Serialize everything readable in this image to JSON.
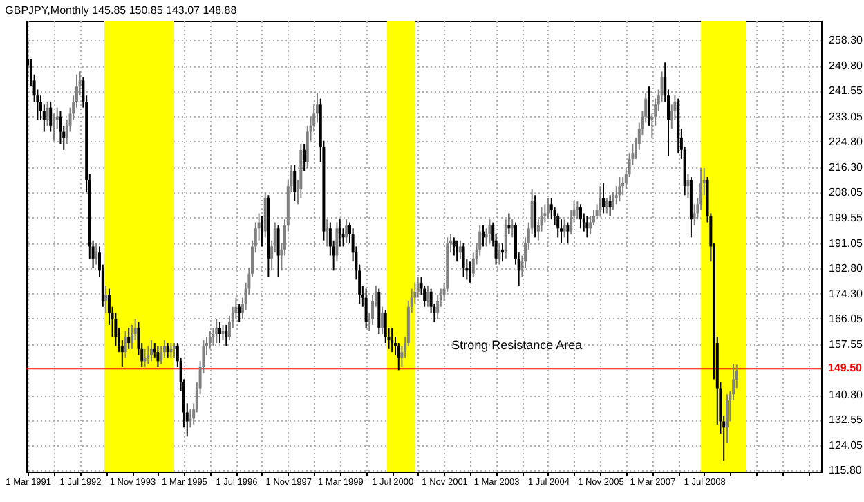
{
  "chart_data": {
    "type": "candlestick",
    "title": "GBPJPY,Monthly 145.85 150.85 143.07 148.88",
    "x": [
      "1991-03",
      "1991-04",
      "1991-05",
      "1991-06",
      "1991-07",
      "1991-08",
      "1991-09",
      "1991-10",
      "1991-11",
      "1991-12",
      "1992-01",
      "1992-02",
      "1992-03",
      "1992-04",
      "1992-05",
      "1992-06",
      "1992-07",
      "1992-08",
      "1992-09",
      "1992-10",
      "1992-11",
      "1992-12",
      "1993-01",
      "1993-02",
      "1993-03",
      "1993-04",
      "1993-05",
      "1993-06",
      "1993-07",
      "1993-08",
      "1993-09",
      "1993-10",
      "1993-11",
      "1993-12",
      "1994-01",
      "1994-02",
      "1994-03",
      "1994-04",
      "1994-05",
      "1994-06",
      "1994-07",
      "1994-08",
      "1994-09",
      "1994-10",
      "1994-11",
      "1994-12",
      "1995-01",
      "1995-02",
      "1995-03",
      "1995-04",
      "1995-05",
      "1995-06",
      "1995-07",
      "1995-08",
      "1995-09",
      "1995-10",
      "1995-11",
      "1995-12",
      "1996-01",
      "1996-02",
      "1996-03",
      "1996-04",
      "1996-05",
      "1996-06",
      "1996-07",
      "1996-08",
      "1996-09",
      "1996-10",
      "1996-11",
      "1996-12",
      "1997-01",
      "1997-02",
      "1997-03",
      "1997-04",
      "1997-05",
      "1997-06",
      "1997-07",
      "1997-08",
      "1997-09",
      "1997-10",
      "1997-11",
      "1997-12",
      "1998-01",
      "1998-02",
      "1998-03",
      "1998-04",
      "1998-05",
      "1998-06",
      "1998-07",
      "1998-08",
      "1998-09",
      "1998-10",
      "1998-11",
      "1998-12",
      "1999-01",
      "1999-02",
      "1999-03",
      "1999-04",
      "1999-05",
      "1999-06",
      "1999-07",
      "1999-08",
      "1999-09",
      "1999-10",
      "1999-11",
      "1999-12",
      "2000-01",
      "2000-02",
      "2000-03",
      "2000-04",
      "2000-05",
      "2000-06",
      "2000-07",
      "2000-08",
      "2000-09",
      "2000-10",
      "2000-11",
      "2000-12",
      "2001-01",
      "2001-02",
      "2001-03",
      "2001-04",
      "2001-05",
      "2001-06",
      "2001-07",
      "2001-08",
      "2001-09",
      "2001-10",
      "2001-11",
      "2001-12",
      "2002-01",
      "2002-02",
      "2002-03",
      "2002-04",
      "2002-05",
      "2002-06",
      "2002-07",
      "2002-08",
      "2002-09",
      "2002-10",
      "2002-11",
      "2002-12",
      "2003-01",
      "2003-02",
      "2003-03",
      "2003-04",
      "2003-05",
      "2003-06",
      "2003-07",
      "2003-08",
      "2003-09",
      "2003-10",
      "2003-11",
      "2003-12",
      "2004-01",
      "2004-02",
      "2004-03",
      "2004-04",
      "2004-05",
      "2004-06",
      "2004-07",
      "2004-08",
      "2004-09",
      "2004-10",
      "2004-11",
      "2004-12",
      "2005-01",
      "2005-02",
      "2005-03",
      "2005-04",
      "2005-05",
      "2005-06",
      "2005-07",
      "2005-08",
      "2005-09",
      "2005-10",
      "2005-11",
      "2005-12",
      "2006-01",
      "2006-02",
      "2006-03",
      "2006-04",
      "2006-05",
      "2006-06",
      "2006-07",
      "2006-08",
      "2006-09",
      "2006-10",
      "2006-11",
      "2006-12",
      "2007-01",
      "2007-02",
      "2007-03",
      "2007-04",
      "2007-05",
      "2007-06",
      "2007-07",
      "2007-08",
      "2007-09",
      "2007-10",
      "2007-11",
      "2007-12",
      "2008-01",
      "2008-02",
      "2008-03",
      "2008-04",
      "2008-05",
      "2008-06",
      "2008-07",
      "2008-08",
      "2008-09",
      "2008-10",
      "2008-11",
      "2008-12",
      "2009-01",
      "2009-02",
      "2009-03",
      "2009-04",
      "2009-05"
    ],
    "ohlc": [
      [
        252,
        258,
        246,
        250
      ],
      [
        250,
        252,
        243,
        245
      ],
      [
        245,
        247,
        238,
        240
      ],
      [
        240,
        242,
        232,
        238
      ],
      [
        238,
        240,
        232,
        235
      ],
      [
        235,
        237,
        228,
        232
      ],
      [
        232,
        238,
        230,
        236
      ],
      [
        236,
        238,
        228,
        230
      ],
      [
        230,
        234,
        225,
        232
      ],
      [
        232,
        236,
        229,
        233
      ],
      [
        233,
        235,
        224,
        228
      ],
      [
        228,
        230,
        222,
        226
      ],
      [
        226,
        232,
        224,
        230
      ],
      [
        230,
        236,
        228,
        234
      ],
      [
        234,
        240,
        232,
        238
      ],
      [
        238,
        247,
        236,
        243
      ],
      [
        243,
        248,
        240,
        245
      ],
      [
        245,
        246,
        236,
        238
      ],
      [
        238,
        240,
        208,
        212
      ],
      [
        212,
        214,
        186,
        190
      ],
      [
        190,
        192,
        183,
        186
      ],
      [
        186,
        191,
        184,
        188
      ],
      [
        188,
        190,
        180,
        182
      ],
      [
        182,
        184,
        170,
        172
      ],
      [
        172,
        177,
        168,
        174
      ],
      [
        174,
        176,
        164,
        168
      ],
      [
        168,
        170,
        160,
        166
      ],
      [
        166,
        168,
        157,
        160
      ],
      [
        160,
        163,
        155,
        157
      ],
      [
        157,
        159,
        150,
        155
      ],
      [
        155,
        162,
        153,
        160
      ],
      [
        160,
        163,
        156,
        158
      ],
      [
        158,
        164,
        156,
        161
      ],
      [
        161,
        166,
        159,
        163
      ],
      [
        163,
        165,
        154,
        156
      ],
      [
        156,
        158,
        150,
        152
      ],
      [
        152,
        156,
        150,
        153
      ],
      [
        153,
        157,
        151,
        154
      ],
      [
        154,
        159,
        152,
        156
      ],
      [
        156,
        158,
        153,
        155
      ],
      [
        155,
        157,
        150,
        152
      ],
      [
        152,
        157,
        151,
        155
      ],
      [
        155,
        159,
        153,
        157
      ],
      [
        157,
        158,
        153,
        155
      ],
      [
        155,
        158,
        153,
        156
      ],
      [
        156,
        158,
        153,
        157
      ],
      [
        157,
        158,
        150,
        152
      ],
      [
        152,
        153,
        142,
        145
      ],
      [
        145,
        146,
        130,
        135
      ],
      [
        135,
        138,
        127,
        132
      ],
      [
        132,
        136,
        130,
        133
      ],
      [
        133,
        138,
        131,
        136
      ],
      [
        136,
        145,
        135,
        143
      ],
      [
        143,
        152,
        141,
        150
      ],
      [
        150,
        159,
        148,
        157
      ],
      [
        157,
        160,
        154,
        158
      ],
      [
        158,
        162,
        156,
        160
      ],
      [
        160,
        163,
        157,
        161
      ],
      [
        161,
        166,
        158,
        163
      ],
      [
        163,
        165,
        158,
        161
      ],
      [
        161,
        164,
        159,
        162
      ],
      [
        162,
        164,
        157,
        160
      ],
      [
        160,
        167,
        159,
        165
      ],
      [
        165,
        170,
        163,
        168
      ],
      [
        168,
        173,
        166,
        170
      ],
      [
        170,
        171,
        165,
        168
      ],
      [
        168,
        173,
        166,
        171
      ],
      [
        171,
        178,
        169,
        176
      ],
      [
        176,
        183,
        174,
        181
      ],
      [
        181,
        192,
        180,
        190
      ],
      [
        190,
        198,
        188,
        196
      ],
      [
        196,
        201,
        192,
        198
      ],
      [
        198,
        200,
        190,
        195
      ],
      [
        195,
        208,
        193,
        206
      ],
      [
        206,
        207,
        180,
        186
      ],
      [
        186,
        192,
        182,
        190
      ],
      [
        190,
        198,
        188,
        196
      ],
      [
        196,
        197,
        180,
        187
      ],
      [
        187,
        191,
        182,
        189
      ],
      [
        189,
        199,
        187,
        197
      ],
      [
        197,
        212,
        195,
        210
      ],
      [
        210,
        217,
        208,
        215
      ],
      [
        215,
        217,
        205,
        208
      ],
      [
        208,
        212,
        204,
        209
      ],
      [
        209,
        224,
        206,
        222
      ],
      [
        222,
        224,
        215,
        218
      ],
      [
        218,
        230,
        216,
        228
      ],
      [
        228,
        233,
        225,
        230
      ],
      [
        230,
        237,
        228,
        234
      ],
      [
        234,
        241,
        231,
        237
      ],
      [
        237,
        239,
        218,
        223
      ],
      [
        223,
        225,
        192,
        195
      ],
      [
        195,
        199,
        190,
        196
      ],
      [
        196,
        198,
        187,
        190
      ],
      [
        190,
        192,
        182,
        187
      ],
      [
        187,
        198,
        185,
        196
      ],
      [
        196,
        199,
        190,
        194
      ],
      [
        194,
        196,
        190,
        193
      ],
      [
        193,
        199,
        191,
        197
      ],
      [
        197,
        198,
        191,
        194
      ],
      [
        194,
        196,
        185,
        188
      ],
      [
        188,
        190,
        179,
        182
      ],
      [
        182,
        184,
        171,
        174
      ],
      [
        174,
        177,
        170,
        173
      ],
      [
        173,
        176,
        163,
        165
      ],
      [
        165,
        168,
        162,
        166
      ],
      [
        166,
        174,
        164,
        172
      ],
      [
        172,
        177,
        170,
        175
      ],
      [
        175,
        176,
        161,
        163
      ],
      [
        163,
        170,
        161,
        168
      ],
      [
        168,
        169,
        158,
        160
      ],
      [
        160,
        163,
        156,
        159
      ],
      [
        159,
        163,
        155,
        158
      ],
      [
        158,
        160,
        154,
        157
      ],
      [
        157,
        158,
        149,
        153
      ],
      [
        153,
        157,
        150,
        155
      ],
      [
        155,
        160,
        153,
        158
      ],
      [
        158,
        172,
        157,
        170
      ],
      [
        170,
        176,
        168,
        173
      ],
      [
        173,
        178,
        171,
        175
      ],
      [
        175,
        180,
        173,
        178
      ],
      [
        178,
        180,
        174,
        176
      ],
      [
        176,
        177,
        170,
        172
      ],
      [
        172,
        177,
        170,
        175
      ],
      [
        175,
        176,
        168,
        170
      ],
      [
        170,
        171,
        165,
        168
      ],
      [
        168,
        174,
        166,
        172
      ],
      [
        172,
        176,
        170,
        174
      ],
      [
        174,
        178,
        172,
        176
      ],
      [
        176,
        193,
        175,
        191
      ],
      [
        191,
        194,
        188,
        192
      ],
      [
        192,
        193,
        187,
        190
      ],
      [
        190,
        192,
        185,
        188
      ],
      [
        188,
        192,
        186,
        190
      ],
      [
        190,
        191,
        180,
        183
      ],
      [
        183,
        186,
        179,
        182
      ],
      [
        182,
        185,
        178,
        181
      ],
      [
        181,
        188,
        180,
        186
      ],
      [
        186,
        191,
        184,
        189
      ],
      [
        189,
        197,
        187,
        195
      ],
      [
        195,
        197,
        190,
        193
      ],
      [
        193,
        196,
        190,
        194
      ],
      [
        194,
        199,
        191,
        197
      ],
      [
        197,
        198,
        190,
        192
      ],
      [
        192,
        194,
        184,
        186
      ],
      [
        186,
        191,
        184,
        189
      ],
      [
        189,
        191,
        185,
        188
      ],
      [
        188,
        199,
        186,
        197
      ],
      [
        197,
        201,
        194,
        196
      ],
      [
        196,
        199,
        193,
        197
      ],
      [
        197,
        198,
        184,
        186
      ],
      [
        186,
        188,
        177,
        182
      ],
      [
        182,
        187,
        180,
        185
      ],
      [
        185,
        193,
        183,
        191
      ],
      [
        191,
        198,
        189,
        196
      ],
      [
        196,
        209,
        194,
        205
      ],
      [
        205,
        207,
        193,
        195
      ],
      [
        195,
        199,
        192,
        197
      ],
      [
        197,
        203,
        195,
        200
      ],
      [
        200,
        204,
        198,
        201
      ],
      [
        201,
        206,
        199,
        204
      ],
      [
        204,
        206,
        199,
        202
      ],
      [
        202,
        203,
        197,
        200
      ],
      [
        200,
        201,
        193,
        196
      ],
      [
        196,
        199,
        191,
        195
      ],
      [
        195,
        199,
        193,
        197
      ],
      [
        197,
        198,
        191,
        195
      ],
      [
        195,
        202,
        194,
        200
      ],
      [
        200,
        205,
        198,
        202
      ],
      [
        202,
        205,
        199,
        203
      ],
      [
        203,
        204,
        196,
        199
      ],
      [
        199,
        201,
        195,
        198
      ],
      [
        198,
        200,
        193,
        196
      ],
      [
        196,
        200,
        194,
        198
      ],
      [
        198,
        202,
        197,
        200
      ],
      [
        200,
        204,
        199,
        202
      ],
      [
        202,
        210,
        200,
        206
      ],
      [
        206,
        211,
        201,
        203
      ],
      [
        203,
        206,
        201,
        205
      ],
      [
        205,
        207,
        200,
        203
      ],
      [
        203,
        208,
        202,
        206
      ],
      [
        206,
        210,
        204,
        207
      ],
      [
        207,
        213,
        205,
        210
      ],
      [
        210,
        213,
        207,
        211
      ],
      [
        211,
        216,
        209,
        214
      ],
      [
        214,
        221,
        213,
        219
      ],
      [
        219,
        224,
        217,
        221
      ],
      [
        221,
        226,
        219,
        224
      ],
      [
        224,
        231,
        222,
        229
      ],
      [
        229,
        235,
        227,
        233
      ],
      [
        233,
        241,
        231,
        239
      ],
      [
        239,
        243,
        230,
        232
      ],
      [
        232,
        234,
        226,
        233
      ],
      [
        233,
        239,
        230,
        237
      ],
      [
        237,
        242,
        235,
        240
      ],
      [
        240,
        248,
        238,
        246
      ],
      [
        246,
        251,
        238,
        240
      ],
      [
        240,
        242,
        220,
        232
      ],
      [
        232,
        237,
        229,
        235
      ],
      [
        235,
        240,
        232,
        238
      ],
      [
        238,
        239,
        221,
        226
      ],
      [
        226,
        229,
        219,
        222
      ],
      [
        222,
        223,
        207,
        210
      ],
      [
        210,
        214,
        206,
        212
      ],
      [
        212,
        213,
        193,
        199
      ],
      [
        199,
        204,
        197,
        201
      ],
      [
        201,
        206,
        199,
        204
      ],
      [
        204,
        216,
        202,
        211
      ],
      [
        211,
        216,
        207,
        212
      ],
      [
        212,
        213,
        198,
        200
      ],
      [
        200,
        201,
        185,
        190
      ],
      [
        190,
        191,
        146,
        158
      ],
      [
        158,
        160,
        131,
        143
      ],
      [
        143,
        145,
        128,
        132
      ],
      [
        132,
        134,
        119,
        130
      ],
      [
        130,
        141,
        125,
        139
      ],
      [
        139,
        142,
        132,
        141
      ],
      [
        141,
        151,
        139,
        146
      ],
      [
        145.85,
        150.85,
        143.07,
        148.88
      ]
    ],
    "colors": [
      "#000000",
      "#000000",
      "#000000",
      "#000000",
      "#000000",
      "#000000",
      "#808080",
      "#000000",
      "#808080",
      "#808080",
      "#000000",
      "#000000",
      "#808080",
      "#808080",
      "#808080",
      "#808080",
      "#808080",
      "#000000",
      "#000000",
      "#000000",
      "#000000",
      "#808080",
      "#000000",
      "#000000",
      "#808080",
      "#000000",
      "#000000",
      "#000000",
      "#000000",
      "#000000",
      "#808080",
      "#000000",
      "#808080",
      "#808080",
      "#000000",
      "#000000",
      "#808080",
      "#808080",
      "#808080",
      "#000000",
      "#000000",
      "#808080",
      "#808080",
      "#000000",
      "#808080",
      "#808080",
      "#000000",
      "#000000",
      "#000000",
      "#000000",
      "#808080",
      "#808080",
      "#808080",
      "#808080",
      "#808080",
      "#808080",
      "#808080",
      "#808080",
      "#808080",
      "#000000",
      "#808080",
      "#000000",
      "#808080",
      "#808080",
      "#808080",
      "#000000",
      "#808080",
      "#808080",
      "#808080",
      "#808080",
      "#808080",
      "#808080",
      "#000000",
      "#808080",
      "#000000",
      "#808080",
      "#808080",
      "#000000",
      "#808080",
      "#808080",
      "#808080",
      "#808080",
      "#000000",
      "#808080",
      "#808080",
      "#000000",
      "#808080",
      "#808080",
      "#808080",
      "#808080",
      "#000000",
      "#000000",
      "#808080",
      "#000000",
      "#000000",
      "#808080",
      "#000000",
      "#000000",
      "#808080",
      "#000000",
      "#000000",
      "#000000",
      "#000000",
      "#000000",
      "#000000",
      "#808080",
      "#808080",
      "#808080",
      "#000000",
      "#808080",
      "#000000",
      "#000000",
      "#000000",
      "#000000",
      "#000000",
      "#808080",
      "#808080",
      "#808080",
      "#808080",
      "#808080",
      "#808080",
      "#000000",
      "#000000",
      "#808080",
      "#000000",
      "#000000",
      "#808080",
      "#808080",
      "#808080",
      "#808080",
      "#808080",
      "#000000",
      "#000000",
      "#808080",
      "#000000",
      "#000000",
      "#000000",
      "#808080",
      "#808080",
      "#808080",
      "#000000",
      "#808080",
      "#808080",
      "#000000",
      "#000000",
      "#808080",
      "#000000",
      "#808080",
      "#000000",
      "#808080",
      "#000000",
      "#000000",
      "#808080",
      "#808080",
      "#808080",
      "#808080",
      "#000000",
      "#808080",
      "#808080",
      "#808080",
      "#808080",
      "#000000",
      "#000000",
      "#000000",
      "#000000",
      "#808080",
      "#000000",
      "#808080",
      "#808080",
      "#808080",
      "#000000",
      "#000000",
      "#000000",
      "#808080",
      "#808080",
      "#808080",
      "#808080",
      "#000000",
      "#808080",
      "#000000",
      "#808080",
      "#808080",
      "#808080",
      "#808080",
      "#808080",
      "#808080",
      "#808080",
      "#808080",
      "#808080",
      "#808080",
      "#808080",
      "#000000",
      "#808080",
      "#808080",
      "#808080",
      "#808080",
      "#000000",
      "#000000",
      "#808080",
      "#808080",
      "#000000",
      "#000000",
      "#000000",
      "#808080",
      "#000000",
      "#808080",
      "#808080",
      "#808080",
      "#808080",
      "#000000",
      "#000000",
      "#000000",
      "#000000",
      "#000000",
      "#000000",
      "#808080",
      "#808080",
      "#808080",
      "#808080"
    ],
    "xlim": [
      "1991-02-15",
      "2011-07"
    ],
    "xticks": [
      {
        "value": "1991-03",
        "label": "1 Mar 1991"
      },
      {
        "value": "1991-11",
        "label": null
      },
      {
        "value": "1992-07",
        "label": "1 Jul 1992"
      },
      {
        "value": "1993-03",
        "label": null
      },
      {
        "value": "1993-11",
        "label": "1 Nov 1993"
      },
      {
        "value": "1994-07",
        "label": null
      },
      {
        "value": "1995-03",
        "label": "1 Mar 1995"
      },
      {
        "value": "1995-11",
        "label": null
      },
      {
        "value": "1996-07",
        "label": "1 Jul 1996"
      },
      {
        "value": "1997-03",
        "label": null
      },
      {
        "value": "1997-11",
        "label": "1 Nov 1997"
      },
      {
        "value": "1998-07",
        "label": null
      },
      {
        "value": "1999-03",
        "label": "1 Mar 1999"
      },
      {
        "value": "1999-11",
        "label": null
      },
      {
        "value": "2000-07",
        "label": "1 Jul 2000"
      },
      {
        "value": "2001-03",
        "label": null
      },
      {
        "value": "2001-11",
        "label": "1 Nov 2001"
      },
      {
        "value": "2002-07",
        "label": null
      },
      {
        "value": "2003-03",
        "label": "1 Mar 2003"
      },
      {
        "value": "2003-11",
        "label": null
      },
      {
        "value": "2004-07",
        "label": "1 Jul 2004"
      },
      {
        "value": "2005-03",
        "label": null
      },
      {
        "value": "2005-11",
        "label": "1 Nov 2005"
      },
      {
        "value": "2006-07",
        "label": null
      },
      {
        "value": "2007-03",
        "label": "1 Mar 2007"
      },
      {
        "value": "2007-11",
        "label": null
      },
      {
        "value": "2008-07",
        "label": "1 Jul 2008"
      },
      {
        "value": "2009-03",
        "label": null
      },
      {
        "value": "2009-11",
        "label": null
      },
      {
        "value": "2010-07",
        "label": null
      },
      {
        "value": "2011-03",
        "label": null
      }
    ],
    "ylim": [
      115.4,
      264.8
    ],
    "yticks": [
      {
        "value": 115.8,
        "label": "115.80"
      },
      {
        "value": 124.05,
        "label": "124.05"
      },
      {
        "value": 132.55,
        "label": "132.55"
      },
      {
        "value": 140.8,
        "label": "140.80"
      },
      {
        "value": 157.55,
        "label": "157.55"
      },
      {
        "value": 166.05,
        "label": "166.05"
      },
      {
        "value": 174.3,
        "label": "174.30"
      },
      {
        "value": 182.8,
        "label": "182.80"
      },
      {
        "value": 191.05,
        "label": "191.05"
      },
      {
        "value": 199.55,
        "label": "199.55"
      },
      {
        "value": 208.05,
        "label": "208.05"
      },
      {
        "value": 216.3,
        "label": "216.30"
      },
      {
        "value": 224.8,
        "label": "224.80"
      },
      {
        "value": 233.05,
        "label": "233.05"
      },
      {
        "value": 241.55,
        "label": "241.55"
      },
      {
        "value": 249.8,
        "label": "249.80"
      },
      {
        "value": 258.3,
        "label": "258.30"
      }
    ],
    "grid": true,
    "ref_lines": [
      {
        "axis": "y",
        "value": 149.5,
        "label": "149.50",
        "color": "#ff0000"
      }
    ],
    "bands": [
      {
        "axis": "x",
        "from": "1993-02-15",
        "to": "1994-12",
        "color": "#ffff00"
      },
      {
        "axis": "x",
        "from": "2000-05-15",
        "to": "2001-02",
        "color": "#ffff00"
      },
      {
        "axis": "x",
        "from": "2008-06",
        "to": "2009-08",
        "color": "#ffff00"
      }
    ],
    "annotations": [
      "Strong Resistance Area"
    ]
  }
}
